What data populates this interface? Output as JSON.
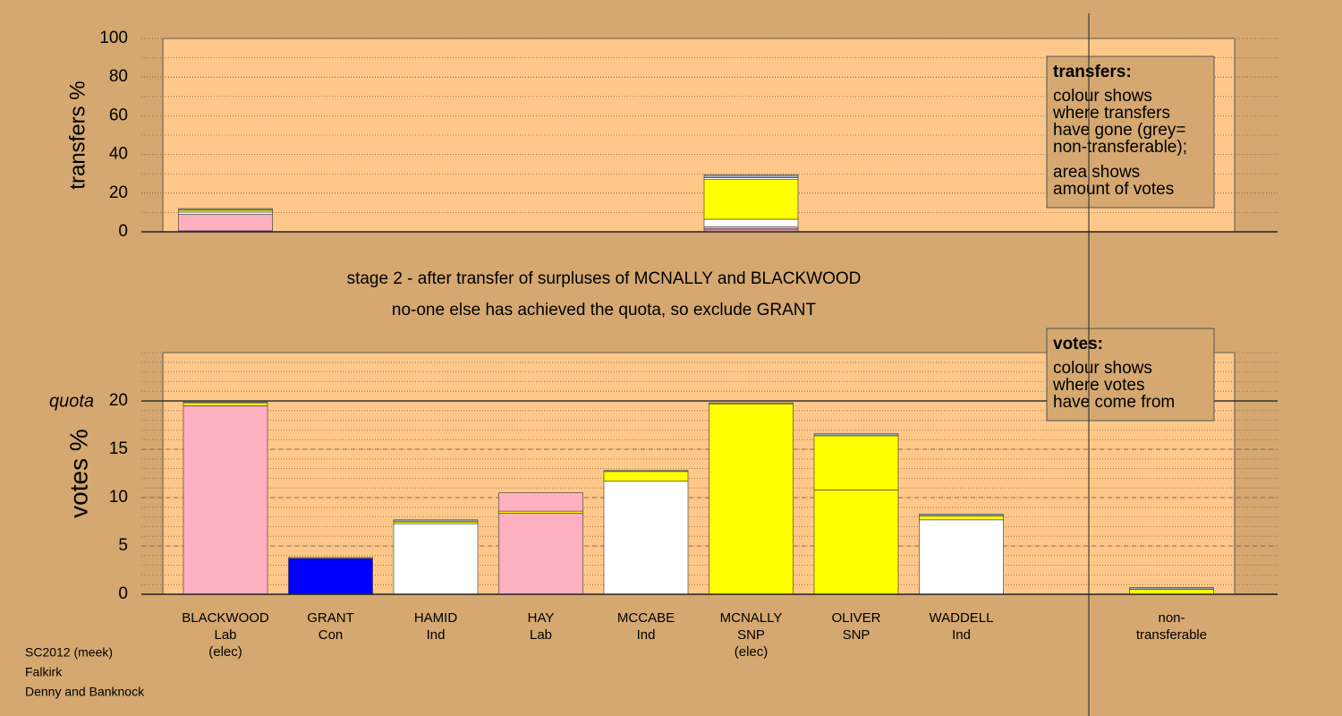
{
  "chart_data": [
    {
      "type": "stacked-bar",
      "ylabel": "transfers %",
      "ylim": [
        0,
        100
      ],
      "yticks": [
        0,
        20,
        40,
        60,
        80,
        100
      ],
      "minor_grid_step": 10,
      "legend": {
        "title": "transfers:",
        "paragraphs": [
          [
            "colour shows",
            "where transfers",
            "have gone (grey=",
            "non-transferable);"
          ],
          [
            "area shows",
            "amount of votes"
          ]
        ]
      },
      "stacks": [
        {
          "segments": [
            {
              "color": "#6a5acd",
              "value": 0.5
            },
            {
              "color": "#ffb0c0",
              "value": 8.5
            },
            {
              "color": "#ffffff",
              "value": 1.2
            },
            {
              "color": "#ffff00",
              "value": 1
            },
            {
              "color": "#a0a8b8",
              "value": 0.8
            }
          ]
        },
        {
          "segments": []
        },
        {
          "segments": []
        },
        {
          "segments": []
        },
        {
          "segments": []
        },
        {
          "segments": [
            {
              "color": "#ffb0c0",
              "value": 1
            },
            {
              "color": "#ffffff",
              "value": 0.5
            },
            {
              "color": "#ffb0c0",
              "value": 1
            },
            {
              "color": "#ffffff",
              "value": 4
            },
            {
              "color": "#ffff00",
              "value": 20.5
            },
            {
              "color": "#ffffff",
              "value": 1
            },
            {
              "color": "#a0a8b8",
              "value": 1.5
            }
          ]
        },
        {
          "segments": []
        },
        {
          "segments": []
        },
        {
          "segments": []
        },
        {
          "segments": []
        }
      ]
    },
    {
      "type": "stacked-bar",
      "title": "stage 2 - after transfer of surpluses of MCNALLY and BLACKWOOD",
      "subtitle": "no-one else has achieved the quota, so exclude GRANT",
      "ylabel": "votes %",
      "ylim": [
        0,
        25
      ],
      "yticks": [
        0,
        5,
        10,
        15,
        20
      ],
      "minor_grid_step": 1,
      "quota": {
        "label": "quota",
        "value": 20
      },
      "legend": {
        "title": "votes:",
        "paragraphs": [
          [
            "colour shows",
            "where votes",
            "have come from"
          ]
        ]
      },
      "categories": [
        [
          "BLACKWOOD",
          "Lab",
          "(elec)"
        ],
        [
          "GRANT",
          "Con"
        ],
        [
          "HAMID",
          "Ind"
        ],
        [
          "HAY",
          "Lab"
        ],
        [
          "MCCABE",
          "Ind"
        ],
        [
          "MCNALLY",
          "SNP",
          "(elec)"
        ],
        [
          "OLIVER",
          "SNP"
        ],
        [
          "WADDELL",
          "Ind"
        ],
        null,
        [
          "non-",
          "transferable"
        ]
      ],
      "stacks": [
        {
          "segments": [
            {
              "color": "#ffb0c0",
              "value": 19.5
            },
            {
              "color": "#ffff00",
              "value": 0.3
            },
            {
              "color": "#a0a8b8",
              "value": 0.1
            }
          ]
        },
        {
          "segments": [
            {
              "color": "#0000ff",
              "value": 3.7
            },
            {
              "color": "#a0a8b8",
              "value": 0.1
            }
          ]
        },
        {
          "segments": [
            {
              "color": "#ffffff",
              "value": 7.3
            },
            {
              "color": "#ffff00",
              "value": 0.2
            },
            {
              "color": "#a0a8b8",
              "value": 0.2
            }
          ]
        },
        {
          "segments": [
            {
              "color": "#ffb0c0",
              "value": 8.4
            },
            {
              "color": "#ffff00",
              "value": 0.2
            },
            {
              "color": "#ffb0c0",
              "value": 1.9
            }
          ]
        },
        {
          "segments": [
            {
              "color": "#ffffff",
              "value": 11.7
            },
            {
              "color": "#ffff00",
              "value": 1
            },
            {
              "color": "#a0a8b8",
              "value": 0.1
            }
          ]
        },
        {
          "segments": [
            {
              "color": "#ffff00",
              "value": 19.7
            },
            {
              "color": "#a0a8b8",
              "value": 0.1
            }
          ]
        },
        {
          "segments": [
            {
              "color": "#ffff00",
              "value": 10.8
            },
            {
              "color": "#ffff00",
              "value": 5.6
            },
            {
              "color": "#a0a8b8",
              "value": 0.2
            }
          ]
        },
        {
          "segments": [
            {
              "color": "#ffffff",
              "value": 7.7
            },
            {
              "color": "#ffff00",
              "value": 0.4
            },
            {
              "color": "#a0a8b8",
              "value": 0.2
            }
          ]
        },
        {
          "segments": []
        },
        {
          "segments": [
            {
              "color": "#ffff00",
              "value": 0.5
            },
            {
              "color": "#a0a8b8",
              "value": 0.2
            }
          ]
        }
      ]
    }
  ],
  "footer": [
    "SC2012 (meek)",
    "Falkirk",
    "Denny and Banknock"
  ]
}
